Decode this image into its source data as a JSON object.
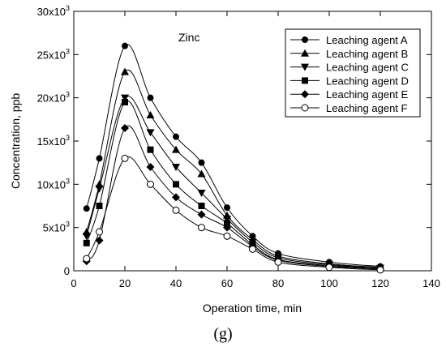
{
  "chart_data": {
    "type": "line",
    "annotation": "Zinc",
    "caption": "(g)",
    "xlabel": "Operation time, min",
    "ylabel": "Concentration, ppb",
    "xlim": [
      0,
      140
    ],
    "ylim": [
      0,
      30000
    ],
    "x_ticks": [
      0,
      20,
      40,
      60,
      80,
      100,
      120,
      140
    ],
    "y_ticks": [
      0,
      5000,
      10000,
      15000,
      20000,
      25000,
      30000
    ],
    "y_tick_labels": [
      {
        "base": "0",
        "exp": ""
      },
      {
        "base": "5x10",
        "exp": "3"
      },
      {
        "base": "10x10",
        "exp": "3"
      },
      {
        "base": "15x10",
        "exp": "3"
      },
      {
        "base": "20x10",
        "exp": "3"
      },
      {
        "base": "25x10",
        "exp": "3"
      },
      {
        "base": "30x10",
        "exp": "3"
      }
    ],
    "grid": false,
    "legend_position": "top-right",
    "x": [
      5,
      10,
      20,
      30,
      40,
      50,
      60,
      70,
      80,
      100,
      120
    ],
    "series": [
      {
        "name": "Leaching agent A",
        "marker": "circle-filled",
        "values": [
          7200,
          13000,
          26000,
          20000,
          15500,
          12500,
          7300,
          4000,
          2000,
          1000,
          500
        ]
      },
      {
        "name": "Leaching agent B",
        "marker": "triangle-up-filled",
        "values": [
          4500,
          10000,
          23000,
          18000,
          14000,
          11200,
          6400,
          3600,
          1700,
          800,
          400
        ]
      },
      {
        "name": "Leaching agent C",
        "marker": "triangle-down-filled",
        "values": [
          4000,
          9500,
          20000,
          16000,
          12000,
          9000,
          6000,
          3300,
          1500,
          700,
          300
        ]
      },
      {
        "name": "Leaching agent D",
        "marker": "square-filled",
        "values": [
          3200,
          7500,
          19500,
          14000,
          10000,
          7500,
          5500,
          3000,
          1300,
          600,
          300
        ]
      },
      {
        "name": "Leaching agent E",
        "marker": "diamond-filled",
        "values": [
          1100,
          3500,
          16500,
          12000,
          8500,
          6500,
          5000,
          2800,
          1200,
          500,
          200
        ]
      },
      {
        "name": "Leaching agent F",
        "marker": "circle-open",
        "values": [
          1400,
          4500,
          13000,
          10000,
          7000,
          5000,
          4000,
          2500,
          1000,
          400,
          100
        ]
      }
    ]
  }
}
